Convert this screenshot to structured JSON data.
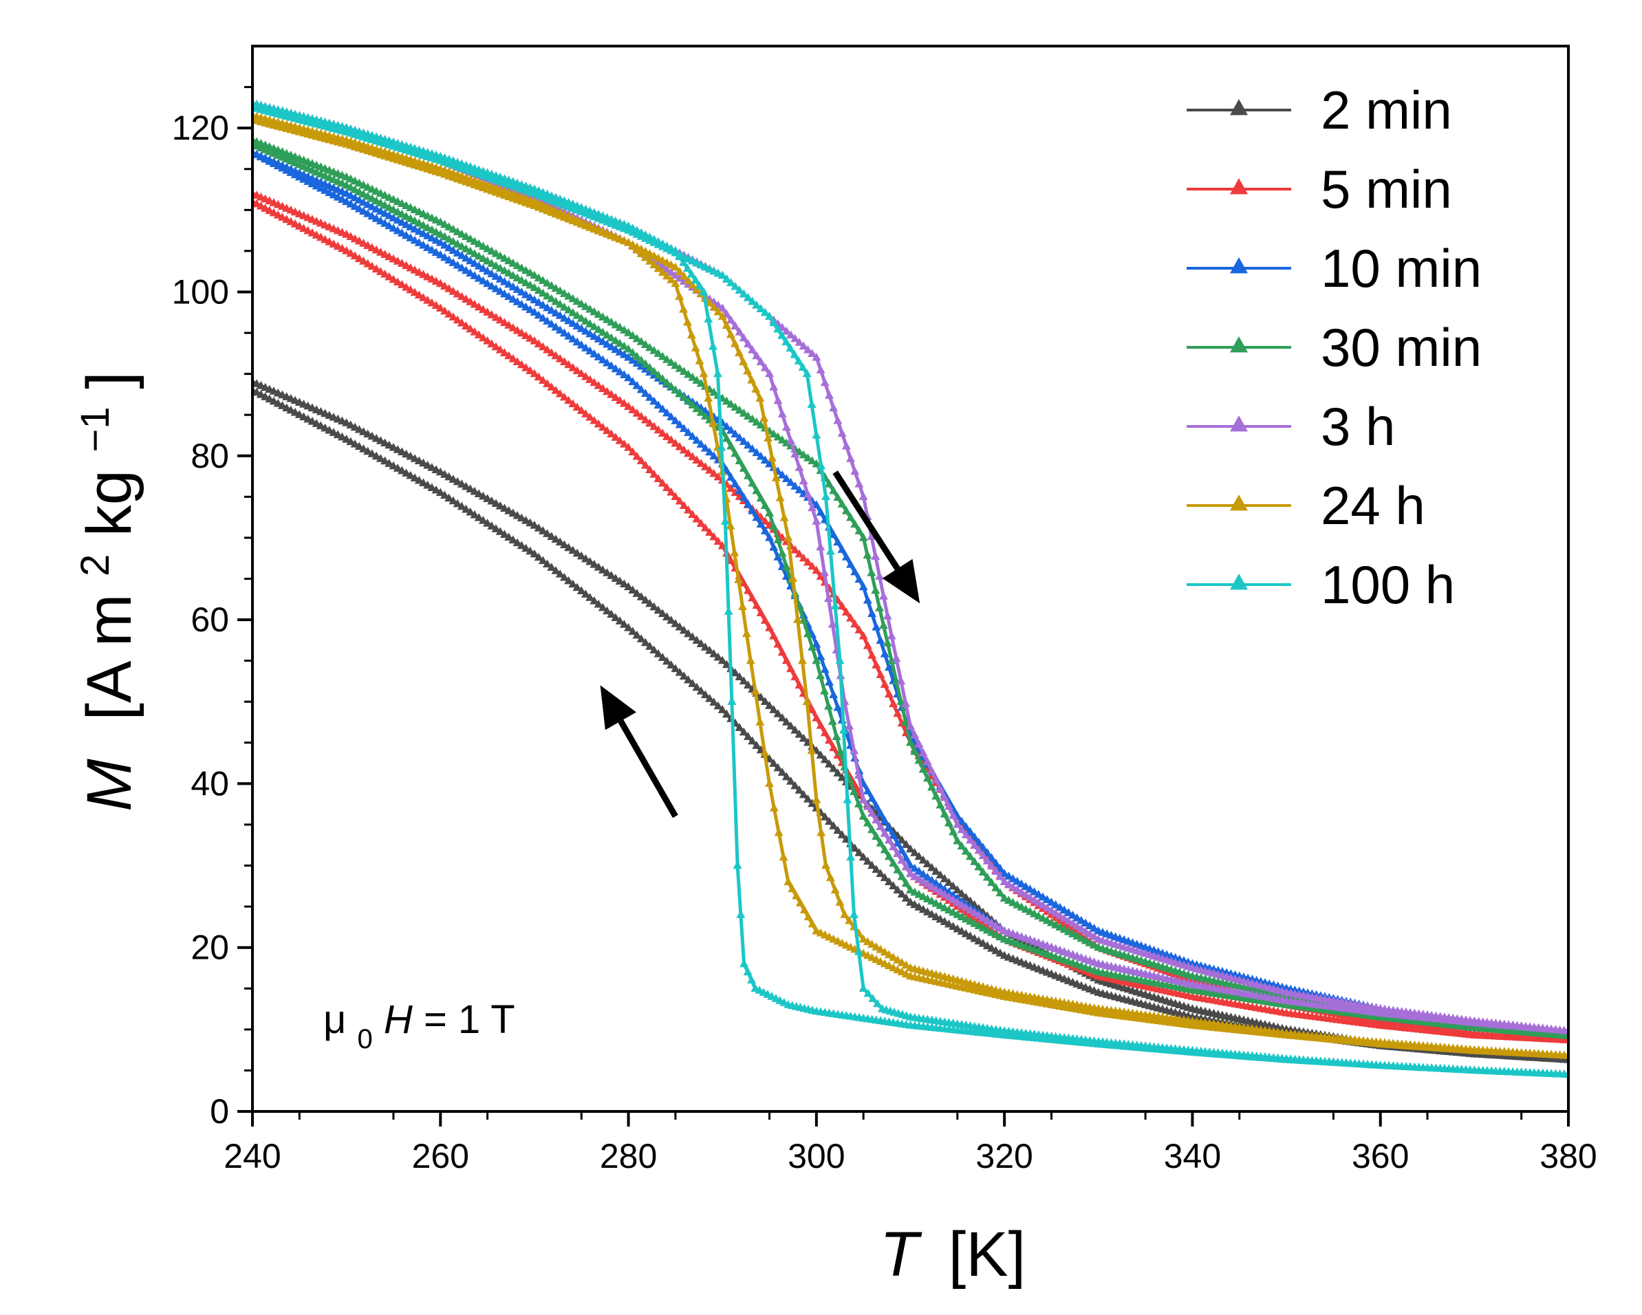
{
  "chart_data": {
    "type": "line",
    "x_axis": {
      "symbol": "T",
      "unit": "[K]",
      "range": [
        240,
        380
      ],
      "ticks": [
        "240",
        "260",
        "280",
        "300",
        "320",
        "340",
        "360",
        "380"
      ]
    },
    "y_axis": {
      "symbol": "M",
      "unit_prefix": "[A m",
      "unit_sup1": "2",
      "unit_mid": " kg",
      "unit_sup2": "−1",
      "unit_suffix": "]",
      "range": [
        0,
        130
      ],
      "ticks": [
        "0",
        "20",
        "40",
        "60",
        "80",
        "100",
        "120"
      ]
    },
    "grid": false,
    "legend_position": "top-right",
    "annotation": {
      "mu": "μ",
      "sub": "0",
      "symbol": "H",
      "value": " = 1 T"
    },
    "arrows": [
      {
        "direction": "cooling",
        "from": [
          302,
          78
        ],
        "to": [
          311,
          62
        ]
      },
      {
        "direction": "heating",
        "from": [
          285,
          36
        ],
        "to": [
          277,
          52
        ]
      }
    ],
    "series": [
      {
        "name": "2 min",
        "color": "#4a4a4a",
        "marker": "triangle",
        "branch_a": [
          [
            240,
            89
          ],
          [
            250,
            84
          ],
          [
            260,
            78
          ],
          [
            270,
            71.5
          ],
          [
            280,
            64
          ],
          [
            290,
            55
          ],
          [
            300,
            44
          ],
          [
            305,
            38
          ],
          [
            310,
            32
          ],
          [
            320,
            22
          ],
          [
            330,
            16
          ],
          [
            340,
            12.5
          ],
          [
            350,
            10
          ],
          [
            360,
            8.2
          ],
          [
            370,
            7
          ],
          [
            380,
            6.3
          ]
        ],
        "branch_b": [
          [
            240,
            88
          ],
          [
            250,
            82
          ],
          [
            260,
            75.5
          ],
          [
            270,
            68
          ],
          [
            280,
            59
          ],
          [
            290,
            49
          ],
          [
            300,
            37
          ],
          [
            305,
            31
          ],
          [
            310,
            25.5
          ],
          [
            320,
            19
          ],
          [
            330,
            14.5
          ],
          [
            340,
            11.5
          ],
          [
            350,
            9.5
          ],
          [
            360,
            8
          ],
          [
            370,
            7
          ],
          [
            380,
            6.3
          ]
        ]
      },
      {
        "name": "5 min",
        "color": "#ee3b3b",
        "marker": "triangle",
        "branch_a": [
          [
            240,
            112
          ],
          [
            250,
            107
          ],
          [
            260,
            101
          ],
          [
            270,
            94
          ],
          [
            280,
            86
          ],
          [
            290,
            77
          ],
          [
            300,
            66
          ],
          [
            305,
            58
          ],
          [
            310,
            45
          ],
          [
            315,
            36
          ],
          [
            320,
            28
          ],
          [
            330,
            20
          ],
          [
            340,
            16
          ],
          [
            350,
            13
          ],
          [
            360,
            11
          ],
          [
            370,
            9.5
          ],
          [
            380,
            8.7
          ]
        ],
        "branch_b": [
          [
            240,
            111
          ],
          [
            250,
            105
          ],
          [
            260,
            98
          ],
          [
            270,
            90
          ],
          [
            280,
            81
          ],
          [
            290,
            69
          ],
          [
            295,
            59
          ],
          [
            300,
            48
          ],
          [
            305,
            38
          ],
          [
            310,
            29
          ],
          [
            320,
            21
          ],
          [
            330,
            16.5
          ],
          [
            340,
            14
          ],
          [
            350,
            12
          ],
          [
            360,
            10.5
          ],
          [
            370,
            9.3
          ],
          [
            380,
            8.7
          ]
        ]
      },
      {
        "name": "10 min",
        "color": "#1a66dd",
        "marker": "triangle",
        "branch_a": [
          [
            240,
            117
          ],
          [
            250,
            112
          ],
          [
            260,
            106
          ],
          [
            270,
            99
          ],
          [
            280,
            92
          ],
          [
            290,
            84
          ],
          [
            300,
            74
          ],
          [
            305,
            64
          ],
          [
            310,
            46
          ],
          [
            315,
            36
          ],
          [
            320,
            29
          ],
          [
            330,
            22
          ],
          [
            340,
            18
          ],
          [
            350,
            15
          ],
          [
            360,
            12.5
          ],
          [
            370,
            10.5
          ],
          [
            380,
            9.4
          ]
        ],
        "branch_b": [
          [
            240,
            117
          ],
          [
            250,
            111
          ],
          [
            260,
            104.5
          ],
          [
            270,
            97.5
          ],
          [
            280,
            89.5
          ],
          [
            290,
            79
          ],
          [
            295,
            70
          ],
          [
            300,
            57
          ],
          [
            305,
            40
          ],
          [
            310,
            30
          ],
          [
            320,
            22
          ],
          [
            330,
            18
          ],
          [
            340,
            15.5
          ],
          [
            350,
            13.3
          ],
          [
            360,
            11.5
          ],
          [
            370,
            10.2
          ],
          [
            380,
            9.4
          ]
        ]
      },
      {
        "name": "30 min",
        "color": "#2f9e58",
        "marker": "triangle",
        "branch_a": [
          [
            240,
            118.5
          ],
          [
            250,
            114
          ],
          [
            260,
            108.5
          ],
          [
            270,
            102
          ],
          [
            280,
            95
          ],
          [
            290,
            87
          ],
          [
            300,
            79
          ],
          [
            305,
            70
          ],
          [
            308,
            55
          ],
          [
            310,
            45
          ],
          [
            315,
            33
          ],
          [
            320,
            26
          ],
          [
            330,
            20
          ],
          [
            340,
            16.5
          ],
          [
            350,
            14
          ],
          [
            360,
            12
          ],
          [
            370,
            10.3
          ],
          [
            380,
            9.2
          ]
        ],
        "branch_b": [
          [
            240,
            118
          ],
          [
            250,
            113
          ],
          [
            260,
            107
          ],
          [
            270,
            100.5
          ],
          [
            280,
            93
          ],
          [
            290,
            83
          ],
          [
            295,
            73
          ],
          [
            300,
            55
          ],
          [
            303,
            42
          ],
          [
            305,
            36
          ],
          [
            310,
            27
          ],
          [
            320,
            21
          ],
          [
            330,
            17
          ],
          [
            340,
            14.8
          ],
          [
            350,
            13
          ],
          [
            360,
            11.5
          ],
          [
            370,
            10.2
          ],
          [
            380,
            9.2
          ]
        ]
      },
      {
        "name": "3 h",
        "color": "#a66fd8",
        "marker": "triangle",
        "branch_a": [
          [
            240,
            123
          ],
          [
            250,
            120
          ],
          [
            260,
            116.5
          ],
          [
            270,
            112.5
          ],
          [
            280,
            108
          ],
          [
            290,
            102
          ],
          [
            300,
            92
          ],
          [
            305,
            75
          ],
          [
            308,
            58
          ],
          [
            310,
            47
          ],
          [
            315,
            35
          ],
          [
            320,
            28
          ],
          [
            330,
            21
          ],
          [
            340,
            17.5
          ],
          [
            350,
            14.5
          ],
          [
            360,
            12.5
          ],
          [
            370,
            11
          ],
          [
            380,
            9.8
          ]
        ],
        "branch_b": [
          [
            240,
            123
          ],
          [
            250,
            120
          ],
          [
            260,
            116
          ],
          [
            270,
            111.5
          ],
          [
            280,
            106
          ],
          [
            290,
            98
          ],
          [
            295,
            90
          ],
          [
            300,
            72
          ],
          [
            303,
            50
          ],
          [
            305,
            38
          ],
          [
            310,
            29
          ],
          [
            320,
            22
          ],
          [
            330,
            18
          ],
          [
            340,
            15.5
          ],
          [
            350,
            13.5
          ],
          [
            360,
            12
          ],
          [
            370,
            10.8
          ],
          [
            380,
            9.8
          ]
        ]
      },
      {
        "name": "24 h",
        "color": "#c89a0a",
        "marker": "triangle",
        "branch_a": [
          [
            240,
            121.5
          ],
          [
            250,
            118.5
          ],
          [
            260,
            115
          ],
          [
            270,
            111
          ],
          [
            280,
            106
          ],
          [
            285,
            101
          ],
          [
            288,
            90
          ],
          [
            290,
            78
          ],
          [
            293,
            55
          ],
          [
            295,
            40
          ],
          [
            297,
            28
          ],
          [
            300,
            22
          ],
          [
            310,
            16.5
          ],
          [
            320,
            14
          ],
          [
            330,
            12
          ],
          [
            340,
            10.5
          ],
          [
            350,
            9.3
          ],
          [
            360,
            8.2
          ],
          [
            370,
            7.4
          ],
          [
            380,
            6.8
          ]
        ],
        "branch_b": [
          [
            240,
            121
          ],
          [
            250,
            118
          ],
          [
            260,
            114.5
          ],
          [
            270,
            110.5
          ],
          [
            280,
            106
          ],
          [
            285,
            103
          ],
          [
            290,
            97
          ],
          [
            294,
            87
          ],
          [
            297,
            70
          ],
          [
            299,
            50
          ],
          [
            300,
            38
          ],
          [
            301,
            30
          ],
          [
            303,
            24
          ],
          [
            305,
            21
          ],
          [
            310,
            17.5
          ],
          [
            320,
            14.5
          ],
          [
            330,
            12.5
          ],
          [
            340,
            11
          ],
          [
            350,
            9.5
          ],
          [
            360,
            8.4
          ],
          [
            370,
            7.5
          ],
          [
            380,
            6.8
          ]
        ]
      },
      {
        "name": "100 h",
        "color": "#1cc6c6",
        "marker": "triangle",
        "branch_a": [
          [
            240,
            123
          ],
          [
            250,
            120
          ],
          [
            260,
            116.5
          ],
          [
            270,
            112.5
          ],
          [
            280,
            108
          ],
          [
            285,
            105
          ],
          [
            288,
            100
          ],
          [
            289.5,
            90
          ],
          [
            290.3,
            72
          ],
          [
            291,
            50
          ],
          [
            291.6,
            30
          ],
          [
            292.3,
            18
          ],
          [
            293.5,
            15
          ],
          [
            297,
            13
          ],
          [
            300,
            12.2
          ],
          [
            310,
            10.5
          ],
          [
            320,
            9.3
          ],
          [
            330,
            8.2
          ],
          [
            340,
            7.2
          ],
          [
            350,
            6.3
          ],
          [
            360,
            5.6
          ],
          [
            370,
            5
          ],
          [
            380,
            4.5
          ]
        ],
        "branch_b": [
          [
            240,
            122.5
          ],
          [
            250,
            119.5
          ],
          [
            260,
            116
          ],
          [
            270,
            112
          ],
          [
            280,
            107.5
          ],
          [
            290,
            102
          ],
          [
            295,
            97
          ],
          [
            299,
            90
          ],
          [
            301,
            75
          ],
          [
            302.5,
            55
          ],
          [
            303.3,
            38
          ],
          [
            304,
            24
          ],
          [
            305,
            15
          ],
          [
            307,
            12.5
          ],
          [
            310,
            11.5
          ],
          [
            320,
            9.8
          ],
          [
            330,
            8.5
          ],
          [
            340,
            7.4
          ],
          [
            350,
            6.4
          ],
          [
            360,
            5.6
          ],
          [
            370,
            5
          ],
          [
            380,
            4.5
          ]
        ]
      }
    ]
  }
}
